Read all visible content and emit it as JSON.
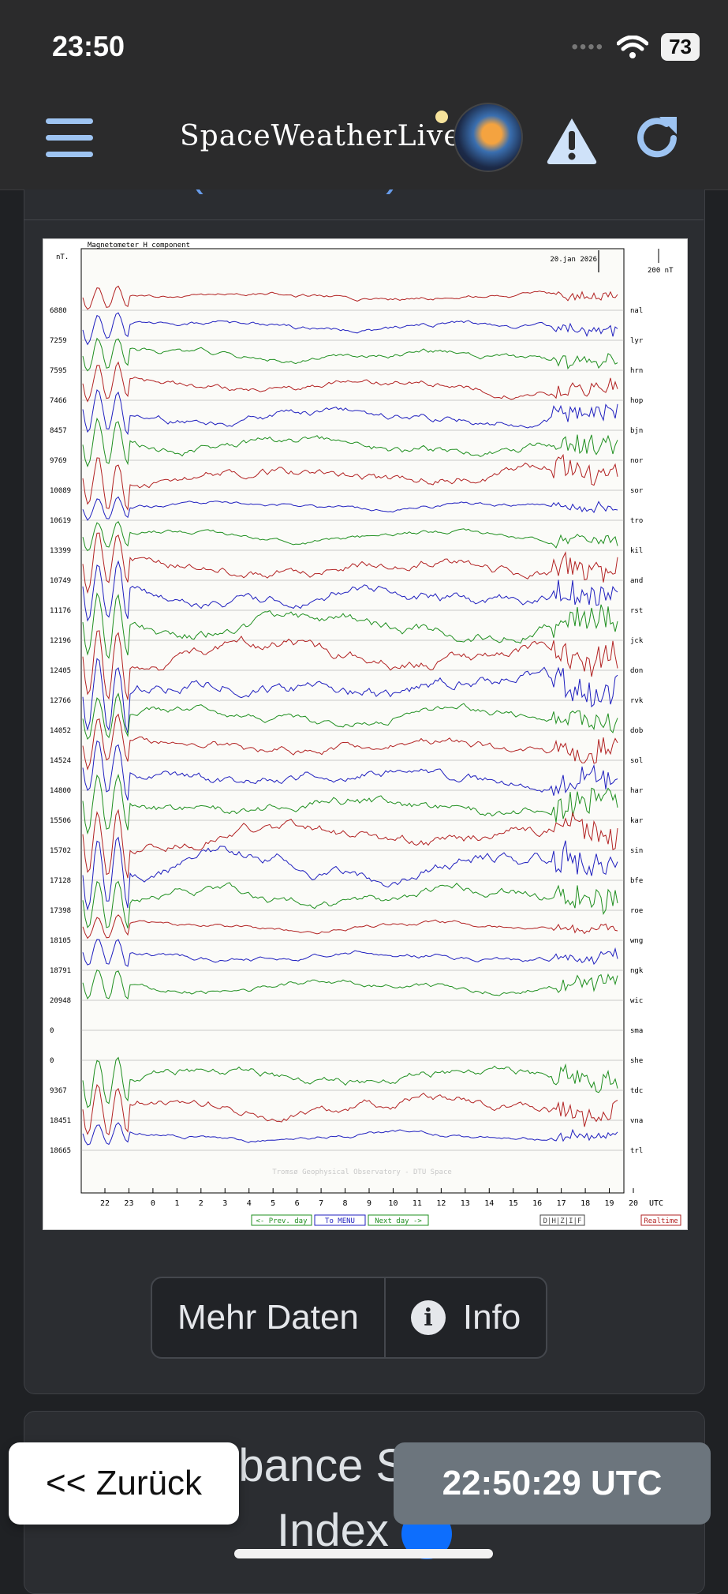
{
  "status": {
    "time": "23:50",
    "battery": "73"
  },
  "header": {
    "brand": "SpaceWeatherLive"
  },
  "section": {
    "title": "Hobart (Australien)"
  },
  "chart_data": {
    "type": "line",
    "title": "Magnetometer H component",
    "date_label": "20.jan 2026",
    "scale_label": "200 nT",
    "y_unit": "nT.",
    "x_ticks": [
      "22",
      "23",
      "0",
      "1",
      "2",
      "3",
      "4",
      "5",
      "6",
      "7",
      "8",
      "9",
      "10",
      "11",
      "12",
      "13",
      "14",
      "15",
      "16",
      "17",
      "18",
      "19",
      "20"
    ],
    "x_unit": "UTC",
    "watermark": "Tromsø Geophysical Observatory - DTU Space",
    "series": [
      {
        "name": "nal",
        "value": "6880",
        "color": "#b22222"
      },
      {
        "name": "lyr",
        "value": "7259",
        "color": "#1f1fbf"
      },
      {
        "name": "hrn",
        "value": "7595",
        "color": "#1f8f1f"
      },
      {
        "name": "hop",
        "value": "7466",
        "color": "#b22222"
      },
      {
        "name": "bjn",
        "value": "8457",
        "color": "#1f1fbf"
      },
      {
        "name": "nor",
        "value": "9769",
        "color": "#1f8f1f"
      },
      {
        "name": "sor",
        "value": "10089",
        "color": "#b22222"
      },
      {
        "name": "tro",
        "value": "10619",
        "color": "#1f1fbf"
      },
      {
        "name": "kil",
        "value": "13399",
        "color": "#1f8f1f"
      },
      {
        "name": "and",
        "value": "10749",
        "color": "#b22222"
      },
      {
        "name": "rst",
        "value": "11176",
        "color": "#1f1fbf"
      },
      {
        "name": "jck",
        "value": "12196",
        "color": "#1f8f1f"
      },
      {
        "name": "don",
        "value": "12405",
        "color": "#b22222"
      },
      {
        "name": "rvk",
        "value": "12766",
        "color": "#1f1fbf"
      },
      {
        "name": "dob",
        "value": "14052",
        "color": "#1f8f1f"
      },
      {
        "name": "sol",
        "value": "14524",
        "color": "#b22222"
      },
      {
        "name": "har",
        "value": "14800",
        "color": "#1f1fbf"
      },
      {
        "name": "kar",
        "value": "15506",
        "color": "#1f8f1f"
      },
      {
        "name": "sin",
        "value": "15702",
        "color": "#b22222"
      },
      {
        "name": "bfe",
        "value": "17128",
        "color": "#1f1fbf"
      },
      {
        "name": "roe",
        "value": "17398",
        "color": "#1f8f1f"
      },
      {
        "name": "wng",
        "value": "18105",
        "color": "#b22222"
      },
      {
        "name": "ngk",
        "value": "18791",
        "color": "#1f1fbf"
      },
      {
        "name": "wic",
        "value": "20948",
        "color": "#1f8f1f"
      },
      {
        "name": "sma",
        "value": "0",
        "color": "#b22222"
      },
      {
        "name": "she",
        "value": "0",
        "color": "#1f1fbf"
      },
      {
        "name": "tdc",
        "value": "9367",
        "color": "#1f8f1f"
      },
      {
        "name": "vna",
        "value": "18451",
        "color": "#b22222"
      },
      {
        "name": "trl",
        "value": "18665",
        "color": "#1f1fbf"
      }
    ],
    "nav": {
      "prev": "<- Prev. day",
      "menu": "To MENU",
      "next": "Next day ->",
      "comps": "D|H|Z|I|F",
      "realtime": "Realtime"
    }
  },
  "buttons": {
    "more": "Mehr Daten",
    "info": "Info"
  },
  "next_section": {
    "title_line1": "Disturbance Storm Time",
    "title_line2": "Index"
  },
  "overlay": {
    "back": "<< Zurück",
    "utc": "22:50:29 UTC"
  }
}
